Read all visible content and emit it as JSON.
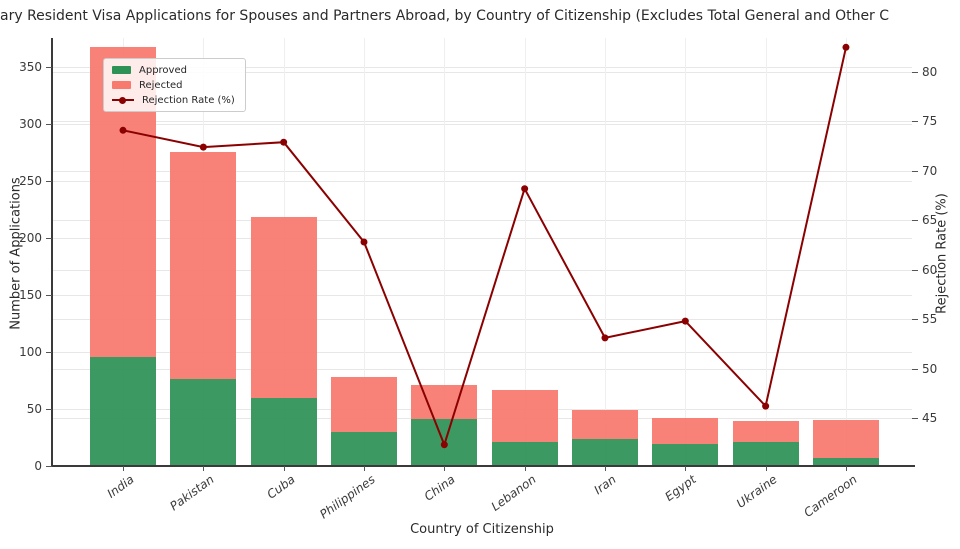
{
  "title": "ary Resident Visa Applications for Spouses and Partners Abroad, by Country of Citizenship (Excludes Total General and Other C",
  "axes": {
    "xlabel": "Country of Citizenship",
    "ylabel_left": "Number of Applications",
    "ylabel_right": "Rejection Rate (%)"
  },
  "legend": {
    "items": [
      {
        "label": "Approved",
        "swatch": "patch"
      },
      {
        "label": "Rejected",
        "swatch": "patch"
      },
      {
        "label": "Rejection Rate (%)",
        "swatch": "line-marker"
      }
    ]
  },
  "colors": {
    "approved": "#2e9156",
    "rejected": "#f8796e",
    "line": "#8b0000",
    "grid_h": "#e7e7e7",
    "grid_v": "#efefef",
    "spine": "#3a3a3a",
    "tick_text": "#3a3a3a",
    "text": "#2b2b2b"
  },
  "chart_data": {
    "type": "bar",
    "variant": "stacked-bars-with-line-overlay",
    "title": "ary Resident Visa Applications for Spouses and Partners Abroad, by Country of Citizenship (Excludes Total General and Other C",
    "categories": [
      "India",
      "Pakistan",
      "Cuba",
      "Philippines",
      "China",
      "Lebanon",
      "Iran",
      "Egypt",
      "Ukraine",
      "Cameroon"
    ],
    "series": [
      {
        "name": "Approved",
        "values": [
          95,
          76,
          59,
          29,
          41,
          21,
          23,
          19,
          21,
          7
        ]
      },
      {
        "name": "Rejected",
        "values": [
          272,
          199,
          159,
          49,
          30,
          45,
          26,
          23,
          18,
          33
        ]
      }
    ],
    "stacked_totals": [
      367,
      275,
      218,
      78,
      71,
      66,
      49,
      42,
      39,
      40
    ],
    "line_series": {
      "name": "Rejection Rate (%)",
      "axis": "right",
      "values": [
        74.1,
        72.4,
        72.9,
        62.8,
        42.3,
        68.2,
        53.1,
        54.8,
        46.2,
        82.5
      ]
    },
    "xlabel": "Country of Citizenship",
    "ylabel": "Number of Applications",
    "ylabel_right": "Rejection Rate (%)",
    "yticks_left": [
      0,
      50,
      100,
      150,
      200,
      250,
      300,
      350
    ],
    "yticks_right": [
      45,
      50,
      55,
      60,
      65,
      70,
      75,
      80
    ],
    "ylim_left": [
      0,
      374
    ],
    "ylim_right": [
      40.3,
      83.3
    ],
    "grid": true,
    "legend_position": "upper left",
    "x_tick_style": "italic rotated"
  }
}
